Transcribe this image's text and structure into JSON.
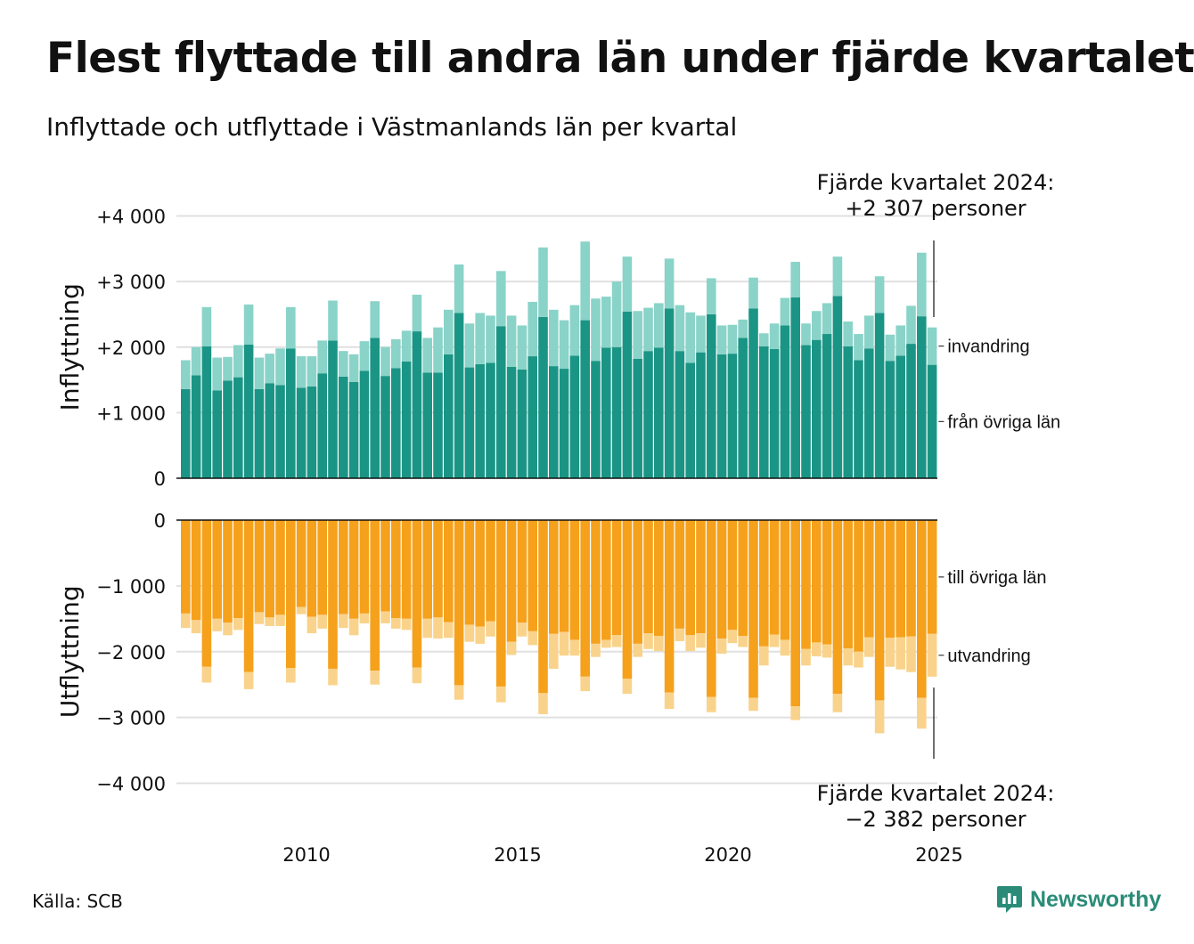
{
  "title": "Flest flyttade till andra län under fjärde kvartalet",
  "subtitle": "Inflyttade och utflyttade i Västmanlands län per kvartal",
  "source": "Källa: SCB",
  "brand": "Newsworthy",
  "colors": {
    "inflow_domestic": "#1a9585",
    "inflow_immigration": "#8ad3c8",
    "outflow_domestic": "#f5a11c",
    "outflow_emigration": "#f9d38c",
    "brand": "#2a8c78"
  },
  "chart_data": {
    "type": "bar",
    "panels": [
      {
        "ylabel": "Inflyttning",
        "ylim": [
          0,
          4000
        ],
        "ticks": [
          0,
          1000,
          2000,
          3000,
          4000
        ],
        "tick_labels": [
          "0",
          "+1 000",
          "+2 000",
          "+3 000",
          "+4 000"
        ]
      },
      {
        "ylabel": "Utflyttning",
        "ylim": [
          -4000,
          0
        ],
        "ticks": [
          0,
          -1000,
          -2000,
          -3000,
          -4000
        ],
        "tick_labels": [
          "0",
          "−1 000",
          "−2 000",
          "−3 000",
          "−4 000"
        ]
      }
    ],
    "x_ticks": [
      "2010",
      "2015",
      "2020",
      "2025"
    ],
    "start_quarter": "2007 Q1",
    "series": [
      {
        "name": "från övriga län",
        "panel": 0,
        "values": [
          1360,
          1570,
          2010,
          1340,
          1490,
          1540,
          2040,
          1360,
          1450,
          1420,
          1980,
          1380,
          1400,
          1600,
          2100,
          1550,
          1470,
          1640,
          2140,
          1560,
          1680,
          1780,
          2240,
          1610,
          1610,
          1890,
          2520,
          1690,
          1740,
          1760,
          2320,
          1700,
          1660,
          1860,
          2460,
          1710,
          1670,
          1870,
          2410,
          1790,
          1990,
          2000,
          2540,
          1820,
          1940,
          1990,
          2590,
          1940,
          1760,
          1920,
          2500,
          1890,
          1900,
          2140,
          2590,
          2010,
          1970,
          2330,
          2760,
          2030,
          2110,
          2200,
          2780,
          2010,
          1800,
          1980,
          2520,
          1790,
          1870,
          2050,
          2470,
          1730
        ]
      },
      {
        "name": "invandring",
        "panel": 0,
        "values": [
          440,
          430,
          600,
          500,
          360,
          490,
          610,
          480,
          450,
          560,
          630,
          480,
          460,
          500,
          610,
          390,
          420,
          450,
          560,
          440,
          440,
          470,
          560,
          530,
          690,
          680,
          740,
          670,
          780,
          720,
          840,
          780,
          670,
          830,
          1060,
          860,
          740,
          770,
          1200,
          950,
          780,
          1000,
          840,
          730,
          660,
          680,
          760,
          700,
          770,
          560,
          550,
          440,
          440,
          280,
          470,
          200,
          390,
          420,
          540,
          330,
          440,
          470,
          600,
          380,
          400,
          500,
          560,
          400,
          460,
          580,
          970,
          570
        ]
      },
      {
        "name": "till övriga län",
        "panel": 1,
        "values": [
          -1420,
          -1520,
          -2230,
          -1500,
          -1560,
          -1490,
          -2310,
          -1400,
          -1480,
          -1440,
          -2250,
          -1320,
          -1470,
          -1440,
          -2260,
          -1430,
          -1500,
          -1420,
          -2290,
          -1390,
          -1490,
          -1500,
          -2240,
          -1500,
          -1480,
          -1550,
          -2510,
          -1590,
          -1620,
          -1540,
          -2530,
          -1850,
          -1560,
          -1690,
          -2630,
          -1730,
          -1700,
          -1820,
          -2380,
          -1880,
          -1820,
          -1750,
          -2410,
          -1880,
          -1720,
          -1760,
          -2620,
          -1650,
          -1750,
          -1720,
          -2690,
          -1800,
          -1670,
          -1760,
          -2700,
          -1920,
          -1740,
          -1820,
          -2830,
          -1960,
          -1860,
          -1890,
          -2640,
          -1950,
          -2000,
          -1780,
          -2740,
          -1790,
          -1780,
          -1770,
          -2700,
          -1730
        ]
      },
      {
        "name": "utvandring",
        "panel": 1,
        "values": [
          -220,
          -200,
          -240,
          -190,
          -190,
          -180,
          -260,
          -180,
          -130,
          -170,
          -220,
          -110,
          -250,
          -210,
          -250,
          -210,
          -250,
          -150,
          -210,
          -180,
          -160,
          -170,
          -240,
          -290,
          -320,
          -240,
          -220,
          -260,
          -260,
          -230,
          -240,
          -200,
          -210,
          -210,
          -320,
          -530,
          -360,
          -240,
          -220,
          -200,
          -120,
          -180,
          -230,
          -200,
          -240,
          -230,
          -250,
          -190,
          -240,
          -220,
          -230,
          -230,
          -200,
          -170,
          -200,
          -290,
          -190,
          -240,
          -210,
          -250,
          -210,
          -200,
          -280,
          -260,
          -240,
          -300,
          -500,
          -440,
          -490,
          -540,
          -470,
          -650
        ]
      }
    ],
    "annotations": [
      {
        "text_line1": "Fjärde kvartalet 2024:",
        "text_line2": "+2 307 personer"
      },
      {
        "text_line1": "Fjärde kvartalet 2024:",
        "text_line2": "−2 382 personer"
      }
    ]
  }
}
